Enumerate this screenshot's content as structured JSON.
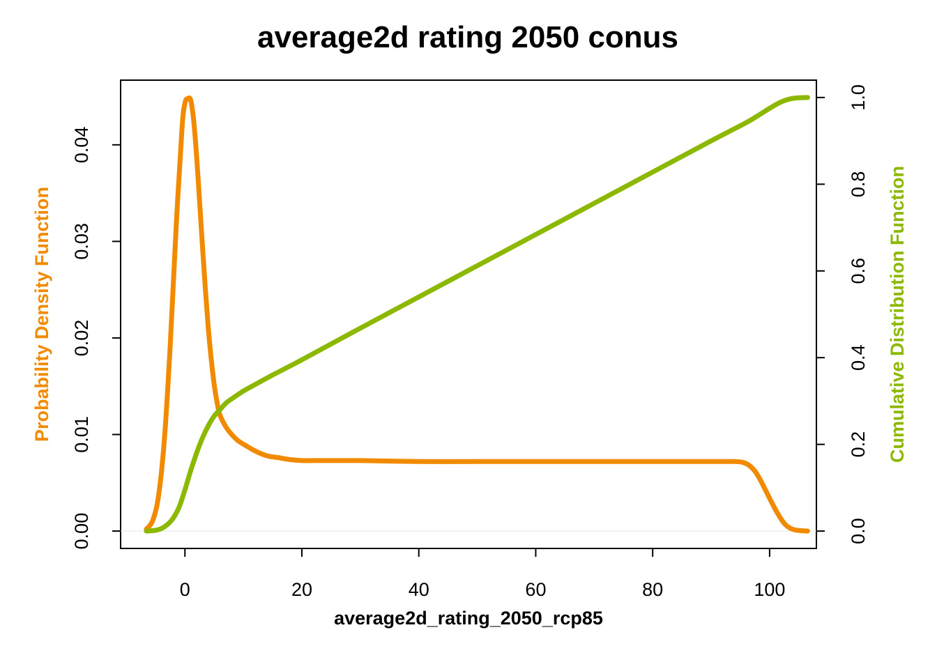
{
  "chart_data": {
    "type": "line",
    "title": "average2d rating 2050 conus",
    "xlabel": "average2d_rating_2050_rcp85",
    "ylabel_left": "Probability Density Function",
    "ylabel_right": "Cumulative Distribution Function",
    "xlim": [
      -11,
      108
    ],
    "ylim_left": [
      -0.0018,
      0.0467
    ],
    "ylim_right": [
      -0.04,
      1.04
    ],
    "x_ticks": [
      0,
      20,
      40,
      60,
      80,
      100
    ],
    "y_left_ticks": [
      "0.00",
      "0.01",
      "0.02",
      "0.03",
      "0.04"
    ],
    "y_right_ticks": [
      "0.0",
      "0.2",
      "0.4",
      "0.6",
      "0.8",
      "1.0"
    ],
    "grid": false,
    "colors": {
      "pdf": "#F28A00",
      "cdf": "#8CB800"
    },
    "series": [
      {
        "name": "Probability Density Function",
        "axis": "left",
        "x": [
          -6.6,
          -5.5,
          -4.5,
          -3.5,
          -2.5,
          -1.5,
          -0.5,
          0.0,
          0.5,
          1.0,
          1.5,
          2.0,
          2.5,
          3.0,
          3.5,
          4.0,
          4.5,
          5.0,
          5.5,
          6.0,
          7.0,
          8.0,
          9.0,
          10.0,
          12.0,
          14.0,
          16.0,
          18.0,
          20.0,
          22.0,
          25.0,
          30.0,
          40.0,
          50.0,
          60.0,
          70.0,
          80.0,
          90.0,
          94.0,
          95.5,
          96.5,
          97.5,
          98.5,
          99.5,
          100.5,
          101.5,
          102.5,
          103.5,
          104.5,
          106.5
        ],
        "y": [
          0.0002,
          0.0011,
          0.0037,
          0.0096,
          0.0194,
          0.0315,
          0.0417,
          0.0443,
          0.0448,
          0.0446,
          0.0425,
          0.0388,
          0.0342,
          0.0295,
          0.025,
          0.021,
          0.0178,
          0.0152,
          0.0133,
          0.012,
          0.0108,
          0.01,
          0.0094,
          0.009,
          0.0083,
          0.0078,
          0.0076,
          0.0074,
          0.0073,
          0.0073,
          0.0073,
          0.0073,
          0.0072,
          0.0072,
          0.0072,
          0.0072,
          0.0072,
          0.0072,
          0.0072,
          0.0071,
          0.0068,
          0.0062,
          0.0052,
          0.004,
          0.0028,
          0.0017,
          0.0008,
          0.0003,
          0.0001,
          0.0
        ]
      },
      {
        "name": "Cumulative Distribution Function",
        "axis": "right",
        "x": [
          -6.6,
          -5.0,
          -4.0,
          -3.0,
          -2.0,
          -1.0,
          0.0,
          1.0,
          2.0,
          3.0,
          4.0,
          5.0,
          6.0,
          7.0,
          8.0,
          10.0,
          12.0,
          15.0,
          20.0,
          30.0,
          40.0,
          50.0,
          60.0,
          70.0,
          80.0,
          90.0,
          94.0,
          96.0,
          98.0,
          100.0,
          102.0,
          104.0,
          106.5
        ],
        "y": [
          0.0,
          0.002,
          0.006,
          0.015,
          0.03,
          0.055,
          0.095,
          0.14,
          0.18,
          0.215,
          0.243,
          0.265,
          0.28,
          0.295,
          0.305,
          0.323,
          0.338,
          0.36,
          0.395,
          0.468,
          0.54,
          0.612,
          0.684,
          0.756,
          0.828,
          0.9,
          0.928,
          0.942,
          0.958,
          0.975,
          0.99,
          0.998,
          1.0
        ]
      }
    ]
  }
}
